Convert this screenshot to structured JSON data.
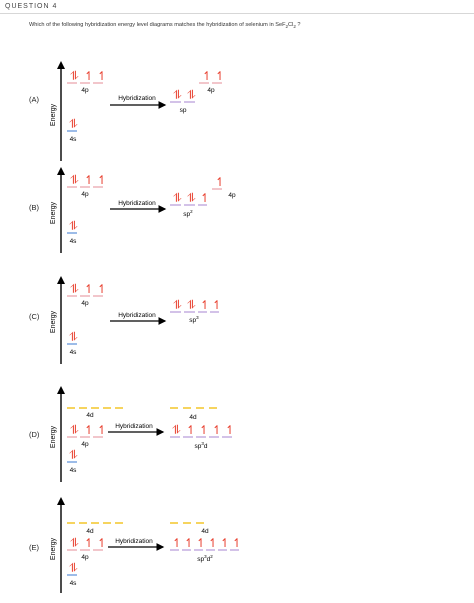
{
  "question": {
    "title": "QUESTION 4",
    "text_before": "Which of the following hybridization energy level diagrams matches the hybridization of selenium in SeF",
    "sub1": "2",
    "text_mid": "Cl",
    "sub2": "2",
    "text_after": " ?"
  },
  "options": [
    {
      "letter": "(A)",
      "energy_label": "Energy",
      "orb_4s": "4s",
      "orb_4p": "4p",
      "orb_4d": "",
      "arrow_label": "Hybridization",
      "hybrid_label": "sp",
      "hybrid_sup": "",
      "unhyb_label": "4p",
      "unhyb_d_label": ""
    },
    {
      "letter": "(B)",
      "energy_label": "Energy",
      "orb_4s": "4s",
      "orb_4p": "4p",
      "orb_4d": "",
      "arrow_label": "Hybridization",
      "hybrid_label": "sp",
      "hybrid_sup": "2",
      "unhyb_label": "4p",
      "unhyb_d_label": ""
    },
    {
      "letter": "(C)",
      "energy_label": "Energy",
      "orb_4s": "4s",
      "orb_4p": "4p",
      "orb_4d": "",
      "arrow_label": "Hybridization",
      "hybrid_label": "sp",
      "hybrid_sup": "3",
      "unhyb_label": "",
      "unhyb_d_label": ""
    },
    {
      "letter": "(D)",
      "energy_label": "Energy",
      "orb_4s": "4s",
      "orb_4p": "4p",
      "orb_4d": "4d",
      "arrow_label": "Hybridization",
      "hybrid_label": "sp",
      "hybrid_sup": "3",
      "hybrid_suffix": "d",
      "unhyb_label": "",
      "unhyb_d_label": "4d"
    },
    {
      "letter": "(E)",
      "energy_label": "Energy",
      "orb_4s": "4s",
      "orb_4p": "4p",
      "orb_4d": "4d",
      "arrow_label": "Hybridization",
      "hybrid_label": "sp",
      "hybrid_sup": "3",
      "hybrid_suffix": "d",
      "hybrid_sup2": "2",
      "unhyb_label": "",
      "unhyb_d_label": "4d"
    }
  ],
  "colors": {
    "electron": "#e8402f",
    "orbital_4s": "#5b8fd9",
    "orbital_4p": "#e9a0a8",
    "orbital_4d": "#f2c21a",
    "hybrid": "#b59ad8",
    "axis": "#000000"
  }
}
